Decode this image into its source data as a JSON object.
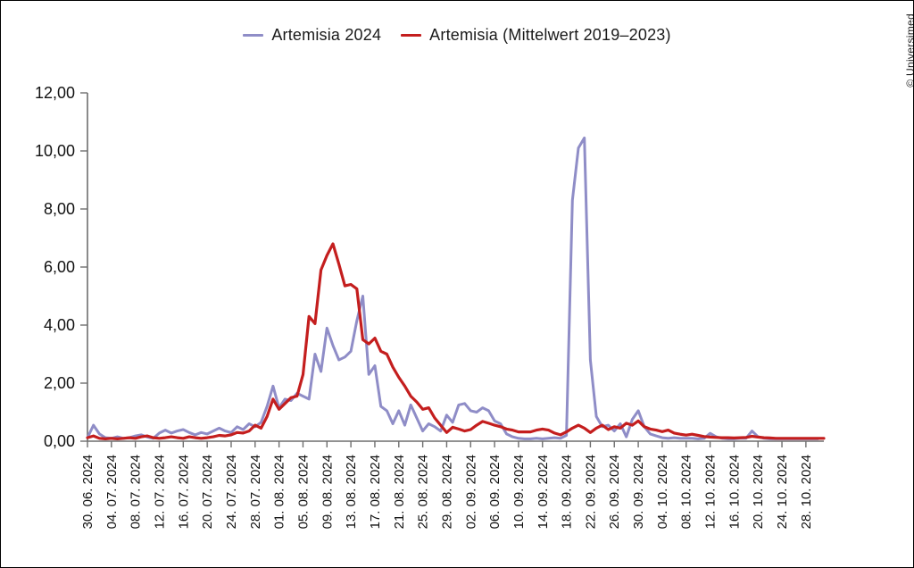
{
  "credit": "© Universimed",
  "legend": {
    "items": [
      {
        "label": "Artemisia 2024",
        "color": "#8f8dc7"
      },
      {
        "label": "Artemisia (Mittelwert 2019–2023)",
        "color": "#c41e1e"
      }
    ]
  },
  "chart_data": {
    "type": "line",
    "title": "",
    "xlabel": "",
    "ylabel": "",
    "ylim": [
      0,
      12
    ],
    "grid": false,
    "legend_position": "top",
    "y_tick_labels": [
      "0,00",
      "2,00",
      "4,00",
      "6,00",
      "8,00",
      "10,00",
      "12,00"
    ],
    "x_tick_every_days": 4,
    "x_tick_labels": [
      "30. 06. 2024",
      "04. 07. 2024",
      "08. 07. 2024",
      "12. 07. 2024",
      "16. 07. 2024",
      "20. 07. 2024",
      "24. 07. 2024",
      "28. 07. 2024",
      "01. 08. 2024",
      "05. 08. 2024",
      "09. 08. 2024",
      "13. 08. 2024",
      "17. 08. 2024",
      "21. 08. 2024",
      "25. 08. 2024",
      "29. 08. 2024",
      "02. 09. 2024",
      "06. 09. 2024",
      "10. 09. 2024",
      "14. 09. 2024",
      "18. 09. 2024",
      "22. 09. 2024",
      "26. 09. 2024",
      "30. 09. 2024",
      "04. 10. 2024",
      "08. 10. 2024",
      "12. 10. 2024",
      "16. 10. 2024",
      "20. 10. 2024",
      "24. 10. 2024",
      "28. 10. 2024"
    ],
    "series": [
      {
        "name": "Artemisia 2024",
        "color": "#8f8dc7",
        "values": [
          0.12,
          0.55,
          0.25,
          0.12,
          0.1,
          0.15,
          0.1,
          0.12,
          0.18,
          0.22,
          0.14,
          0.1,
          0.28,
          0.38,
          0.28,
          0.35,
          0.4,
          0.3,
          0.22,
          0.3,
          0.25,
          0.35,
          0.45,
          0.35,
          0.3,
          0.5,
          0.4,
          0.6,
          0.5,
          0.65,
          1.2,
          1.9,
          1.15,
          1.45,
          1.4,
          1.65,
          1.55,
          1.45,
          3.0,
          2.4,
          3.9,
          3.3,
          2.8,
          2.9,
          3.1,
          4.15,
          5.0,
          2.3,
          2.6,
          1.2,
          1.05,
          0.6,
          1.05,
          0.55,
          1.25,
          0.8,
          0.35,
          0.6,
          0.5,
          0.35,
          0.9,
          0.65,
          1.25,
          1.3,
          1.05,
          1.0,
          1.15,
          1.05,
          0.7,
          0.6,
          0.25,
          0.15,
          0.1,
          0.08,
          0.08,
          0.1,
          0.08,
          0.1,
          0.12,
          0.1,
          0.2,
          8.3,
          10.1,
          10.45,
          2.8,
          0.85,
          0.5,
          0.55,
          0.35,
          0.6,
          0.15,
          0.75,
          1.05,
          0.5,
          0.25,
          0.18,
          0.12,
          0.1,
          0.12,
          0.1,
          0.1,
          0.1,
          0.08,
          0.1,
          0.27,
          0.15,
          0.1,
          0.08,
          0.08,
          0.1,
          0.1,
          0.35,
          0.15,
          0.1,
          0.08,
          0.08,
          0.08,
          0.08,
          0.08,
          0.08,
          0.08,
          0.08,
          0.08
        ]
      },
      {
        "name": "Artemisia (Mittelwert 2019–2023)",
        "color": "#c41e1e",
        "values": [
          0.12,
          0.18,
          0.1,
          0.08,
          0.1,
          0.08,
          0.1,
          0.12,
          0.1,
          0.15,
          0.18,
          0.12,
          0.1,
          0.12,
          0.15,
          0.12,
          0.1,
          0.15,
          0.12,
          0.1,
          0.12,
          0.15,
          0.2,
          0.18,
          0.22,
          0.3,
          0.28,
          0.35,
          0.55,
          0.45,
          0.85,
          1.45,
          1.1,
          1.3,
          1.5,
          1.55,
          2.3,
          4.3,
          4.05,
          5.9,
          6.4,
          6.8,
          6.1,
          5.35,
          5.4,
          5.25,
          3.5,
          3.35,
          3.55,
          3.1,
          3.0,
          2.55,
          2.2,
          1.9,
          1.55,
          1.35,
          1.1,
          1.15,
          0.8,
          0.55,
          0.3,
          0.48,
          0.42,
          0.35,
          0.4,
          0.55,
          0.68,
          0.62,
          0.55,
          0.5,
          0.42,
          0.38,
          0.32,
          0.32,
          0.32,
          0.38,
          0.42,
          0.38,
          0.28,
          0.22,
          0.32,
          0.45,
          0.55,
          0.45,
          0.3,
          0.45,
          0.55,
          0.4,
          0.5,
          0.45,
          0.62,
          0.55,
          0.7,
          0.5,
          0.42,
          0.38,
          0.33,
          0.38,
          0.28,
          0.24,
          0.21,
          0.24,
          0.2,
          0.16,
          0.14,
          0.13,
          0.12,
          0.12,
          0.11,
          0.12,
          0.13,
          0.17,
          0.14,
          0.12,
          0.11,
          0.1,
          0.1,
          0.1,
          0.1,
          0.1,
          0.1,
          0.1,
          0.1,
          0.1
        ]
      }
    ]
  }
}
